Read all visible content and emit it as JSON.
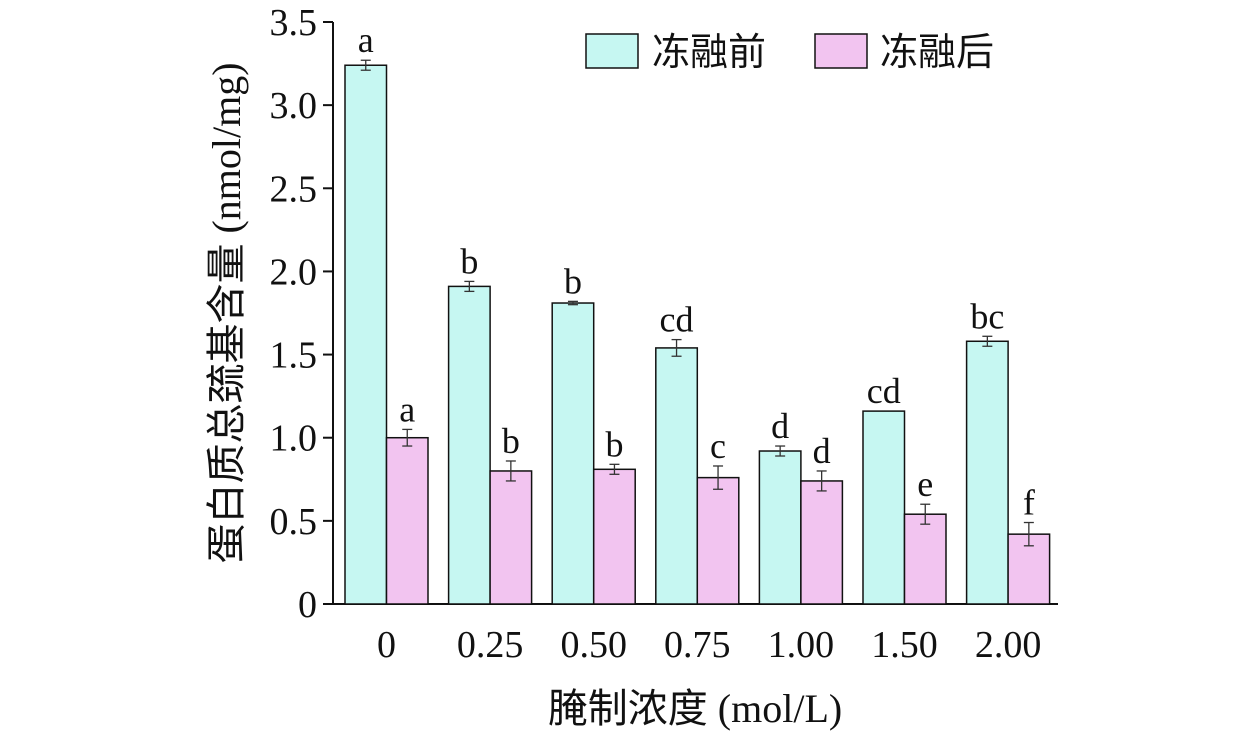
{
  "chart_data": {
    "type": "bar",
    "title": "",
    "xlabel": "腌制浓度 (mol/L)",
    "ylabel": "蛋白质总巯基含量 (nmol/mg)",
    "ylim": [
      0,
      3.5
    ],
    "yticks": [
      "0",
      "0.5",
      "1.0",
      "1.5",
      "2.0",
      "2.5",
      "3.0",
      "3.5"
    ],
    "categories": [
      "0",
      "0.25",
      "0.50",
      "0.75",
      "1.00",
      "1.50",
      "2.00"
    ],
    "grid": false,
    "legend_position": "top-right",
    "series": [
      {
        "name": "冻融前",
        "color": "#c6f7f2",
        "values": [
          3.24,
          1.91,
          1.81,
          1.54,
          0.92,
          1.16,
          1.58
        ],
        "errors": [
          0.03,
          0.03,
          0.01,
          0.05,
          0.03,
          0.0,
          0.03
        ],
        "labels": [
          "a",
          "b",
          "b",
          "cd",
          "d",
          "cd",
          "bc"
        ]
      },
      {
        "name": "冻融后",
        "color": "#f2c4f0",
        "values": [
          1.0,
          0.8,
          0.81,
          0.76,
          0.74,
          0.54,
          0.42
        ],
        "errors": [
          0.05,
          0.06,
          0.03,
          0.07,
          0.06,
          0.06,
          0.07
        ],
        "labels": [
          "a",
          "b",
          "b",
          "c",
          "d",
          "e",
          "f"
        ]
      }
    ]
  }
}
